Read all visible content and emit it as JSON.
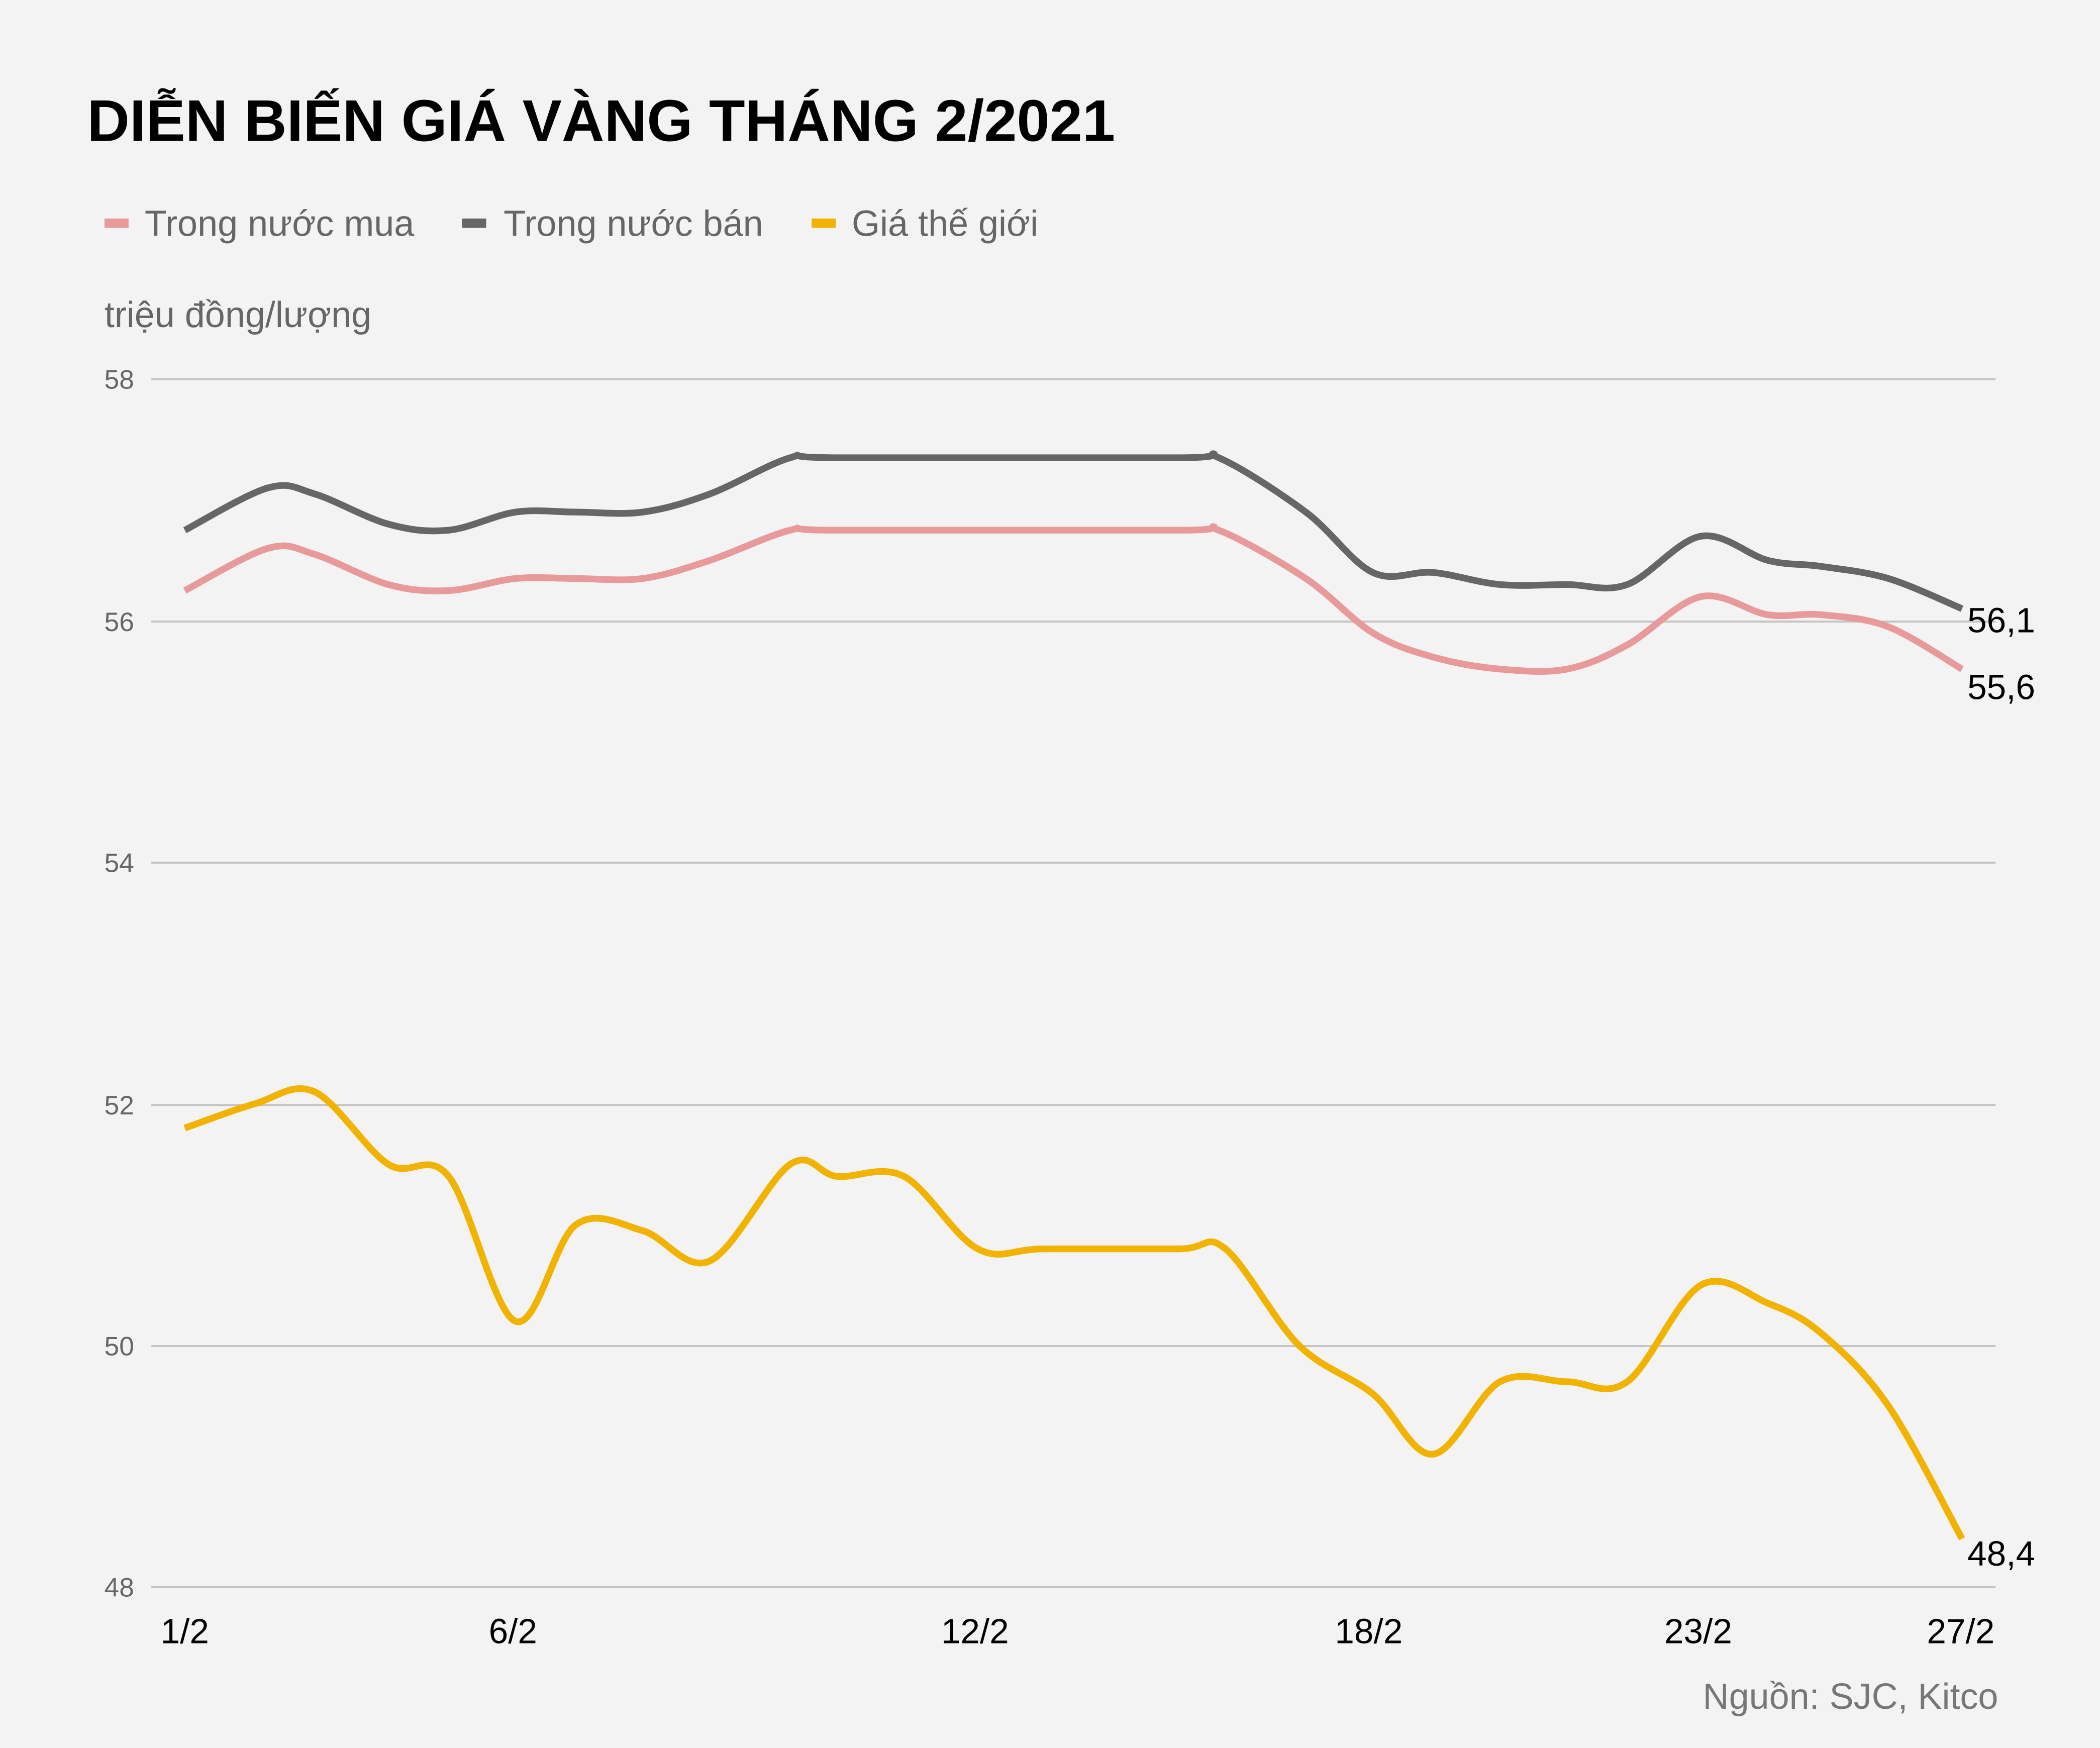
{
  "title": "DIỄN BIẾN GIÁ VÀNG THÁNG 2/2021",
  "unit_label": "triệu đồng/lượng",
  "source": "Nguồn: SJC, Kitco",
  "legend": [
    {
      "label": "Trong nước mua",
      "color": "#e89a9a"
    },
    {
      "label": "Trong nước bán",
      "color": "#666666"
    },
    {
      "label": "Giá thế giới",
      "color": "#f2b200"
    }
  ],
  "y_ticks": [
    "58",
    "56",
    "54",
    "52",
    "50",
    "48"
  ],
  "x_ticks": [
    "1/2",
    "6/2",
    "12/2",
    "18/2",
    "23/2",
    "27/2"
  ],
  "end_labels": {
    "ban": "56,1",
    "mua": "55,6",
    "the_gioi": "48,4"
  },
  "chart_data": {
    "type": "line",
    "title": "DIỄN BIẾN GIÁ VÀNG THÁNG 2/2021",
    "xlabel": "",
    "ylabel": "triệu đồng/lượng",
    "ylim": [
      48,
      58
    ],
    "yticks": [
      48,
      50,
      52,
      54,
      56,
      58
    ],
    "xtick_labels": [
      "1/2",
      "6/2",
      "12/2",
      "18/2",
      "23/2",
      "27/2"
    ],
    "grid": true,
    "legend_position": "top-left",
    "x_positions": [
      138,
      200,
      235,
      290,
      335,
      385,
      430,
      480,
      530,
      590,
      625,
      880,
      910,
      975,
      1025,
      1070,
      1120,
      1170,
      1215,
      1270,
      1320,
      1360,
      1410,
      1465
    ],
    "series": [
      {
        "name": "Trong nước mua",
        "color": "#e89a9a",
        "values": [
          56.25,
          56.6,
          56.55,
          56.3,
          56.25,
          56.35,
          56.35,
          56.35,
          56.5,
          56.75,
          56.75,
          56.75,
          56.75,
          56.35,
          55.9,
          55.7,
          55.6,
          55.6,
          55.8,
          56.2,
          56.05,
          56.05,
          55.95,
          55.6
        ]
      },
      {
        "name": "Trong nước bán",
        "color": "#666666",
        "values": [
          56.75,
          57.1,
          57.05,
          56.8,
          56.75,
          56.9,
          56.9,
          56.9,
          57.05,
          57.35,
          57.35,
          57.35,
          57.35,
          56.9,
          56.4,
          56.4,
          56.3,
          56.3,
          56.3,
          56.7,
          56.5,
          56.45,
          56.35,
          56.1
        ]
      },
      {
        "name": "Giá thế giới",
        "color": "#f2b200",
        "x_positions": [
          138,
          190,
          235,
          290,
          335,
          385,
          430,
          480,
          530,
          590,
          625,
          675,
          730,
          780,
          880,
          915,
          970,
          1025,
          1070,
          1120,
          1170,
          1215,
          1270,
          1320,
          1360,
          1410,
          1465
        ],
        "values": [
          51.8,
          52.0,
          52.1,
          51.5,
          51.4,
          50.2,
          51.0,
          50.95,
          50.7,
          51.5,
          51.4,
          51.4,
          50.8,
          50.8,
          50.8,
          50.8,
          50.0,
          49.6,
          49.1,
          49.7,
          49.7,
          49.7,
          50.5,
          50.35,
          50.1,
          49.5,
          48.4
        ]
      }
    ]
  }
}
